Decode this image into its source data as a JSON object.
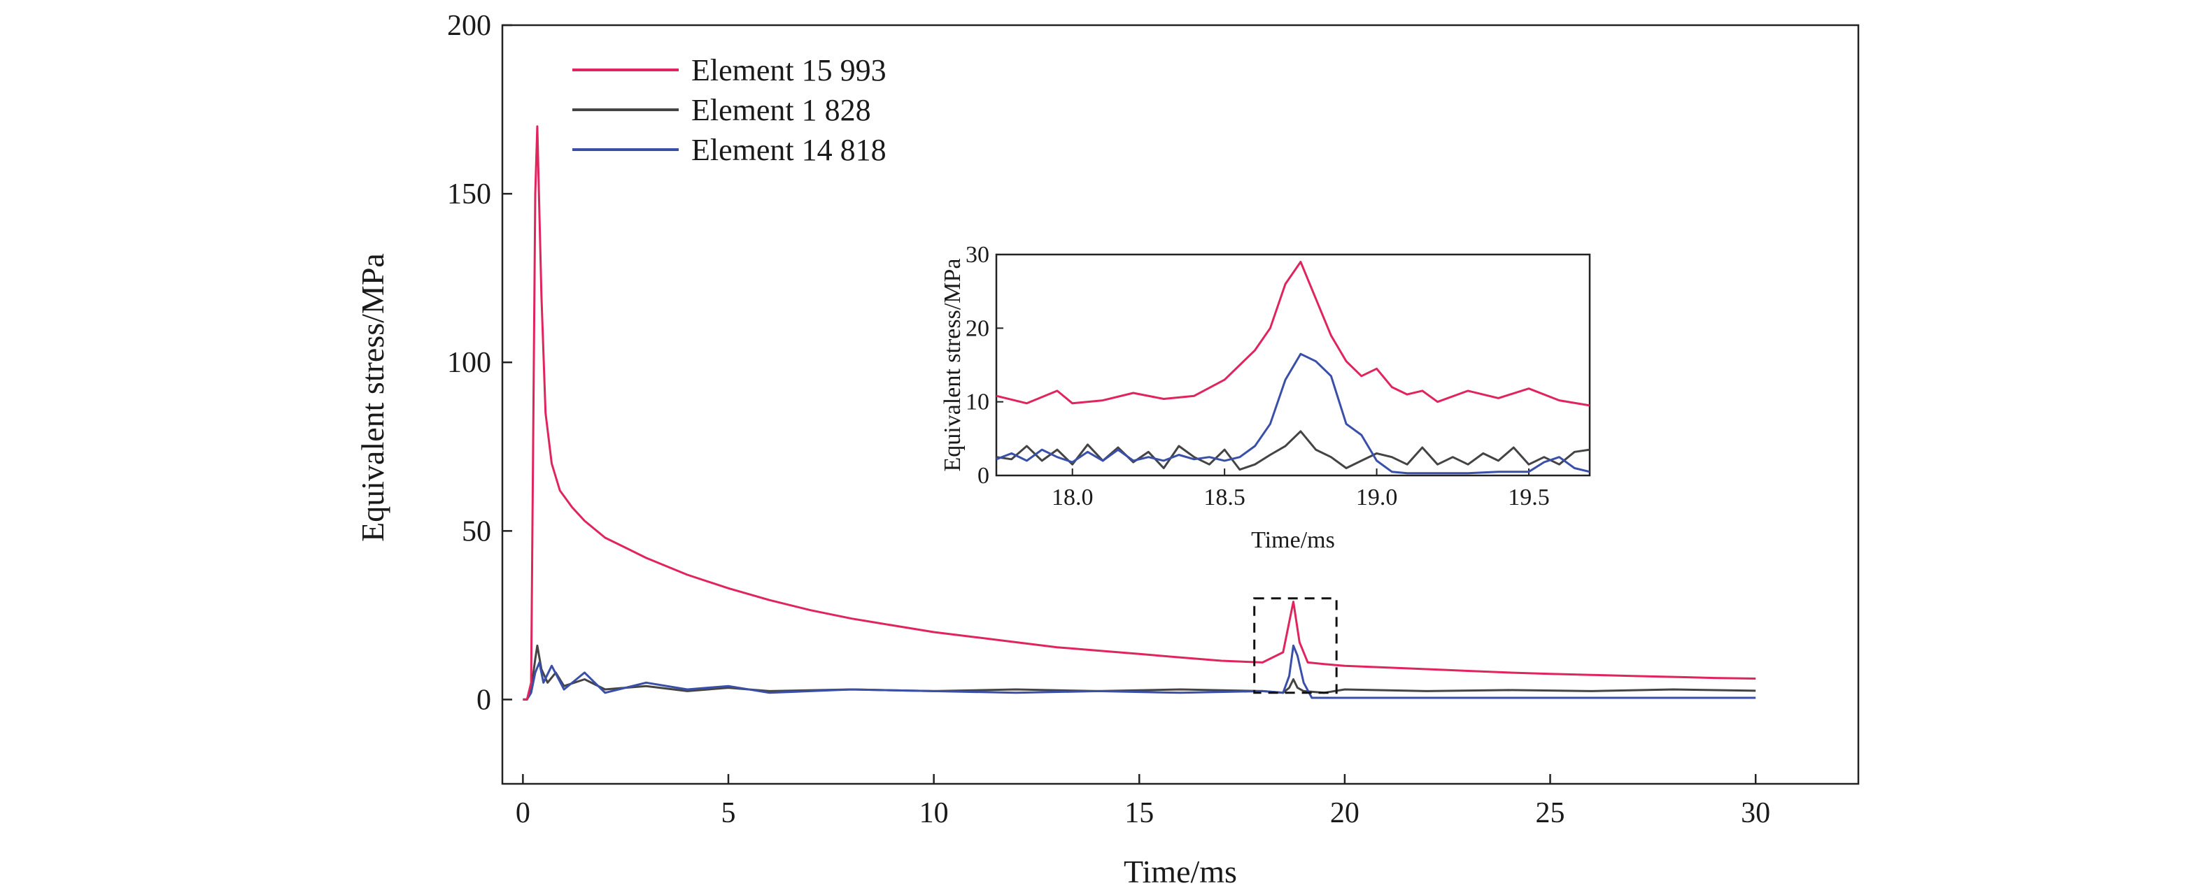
{
  "chart_data": [
    {
      "type": "line",
      "xlabel": "Time/ms",
      "ylabel": "Equivalent stress/MPa",
      "xlim": [
        -0.5,
        32.5
      ],
      "ylim": [
        -25,
        200
      ],
      "xticks": [
        "0",
        "5",
        "10",
        "15",
        "20",
        "25",
        "30"
      ],
      "yticks": [
        "0",
        "50",
        "100",
        "150",
        "200"
      ],
      "legend_position": "top-left",
      "grid": false,
      "annotation": "dashed box marking 17.8–19.8 ms, magnified in inset",
      "series": [
        {
          "name": "Element 15 993",
          "color": "#e0245e",
          "x": [
            0,
            0.1,
            0.2,
            0.3,
            0.35,
            0.45,
            0.55,
            0.7,
            0.9,
            1.2,
            1.5,
            2,
            2.5,
            3,
            4,
            5,
            6,
            7,
            8,
            9,
            10,
            11,
            12,
            13,
            14,
            15,
            16,
            17,
            18,
            18.5,
            18.65,
            18.75,
            18.9,
            19.1,
            19.5,
            20,
            21,
            22,
            23,
            24,
            25,
            26,
            27,
            28,
            29,
            30
          ],
          "y": [
            0,
            0,
            5,
            150,
            170,
            120,
            85,
            70,
            62,
            57,
            53,
            48,
            45,
            42,
            37,
            33,
            29.5,
            26.5,
            24,
            22,
            20,
            18.5,
            17,
            15.5,
            14.5,
            13.5,
            12.5,
            11.5,
            11,
            14,
            23,
            29,
            17,
            11,
            10.5,
            10,
            9.5,
            9,
            8.5,
            8,
            7.6,
            7.3,
            7,
            6.7,
            6.4,
            6.2
          ]
        },
        {
          "name": "Element 1 828",
          "color": "#444444",
          "x": [
            0,
            0.1,
            0.2,
            0.3,
            0.35,
            0.45,
            0.6,
            0.8,
            1,
            1.5,
            2,
            3,
            4,
            5,
            6,
            8,
            10,
            12,
            14,
            16,
            18,
            18.5,
            18.65,
            18.75,
            18.85,
            19,
            19.5,
            20,
            22,
            24,
            26,
            28,
            30
          ],
          "y": [
            0,
            0,
            3,
            12,
            16,
            9,
            5,
            8,
            4,
            6,
            3,
            4,
            2.5,
            3.5,
            2.5,
            3,
            2.5,
            3,
            2.5,
            3,
            2.5,
            2,
            3.5,
            6,
            3.5,
            2.5,
            2,
            3,
            2.5,
            2.8,
            2.5,
            3,
            2.6
          ]
        },
        {
          "name": "Element 14 818",
          "color": "#3a4fa8",
          "x": [
            0,
            0.1,
            0.2,
            0.3,
            0.4,
            0.5,
            0.7,
            1,
            1.5,
            2,
            3,
            4,
            5,
            6,
            8,
            10,
            12,
            14,
            16,
            18,
            18.5,
            18.65,
            18.75,
            18.85,
            19,
            19.2,
            20,
            22,
            24,
            26,
            28,
            30
          ],
          "y": [
            0,
            0,
            2,
            8,
            11,
            5,
            10,
            3,
            8,
            2,
            5,
            3,
            4,
            2,
            3,
            2.5,
            2,
            2.5,
            2,
            2.5,
            2,
            7,
            16,
            13,
            5,
            0.5,
            0.5,
            0.5,
            0.5,
            0.5,
            0.5,
            0.5
          ]
        }
      ]
    },
    {
      "type": "line",
      "xlabel": "Time/ms",
      "ylabel": "Equivalent stress/MPa",
      "xlim": [
        17.75,
        19.7
      ],
      "ylim": [
        0,
        30
      ],
      "xticks": [
        "18.0",
        "18.5",
        "19.0",
        "19.5"
      ],
      "yticks": [
        "0",
        "10",
        "20",
        "30"
      ],
      "grid": false,
      "series": [
        {
          "color": "#e0245e",
          "x": [
            17.75,
            17.85,
            17.95,
            18.0,
            18.1,
            18.2,
            18.3,
            18.4,
            18.5,
            18.6,
            18.65,
            18.7,
            18.75,
            18.8,
            18.85,
            18.9,
            18.95,
            19.0,
            19.05,
            19.1,
            19.15,
            19.2,
            19.3,
            19.4,
            19.5,
            19.6,
            19.7
          ],
          "y": [
            10.8,
            9.8,
            11.5,
            9.8,
            10.2,
            11.2,
            10.4,
            10.8,
            13,
            17,
            20,
            26,
            29,
            24,
            19,
            15.5,
            13.5,
            14.5,
            12,
            11,
            11.5,
            10,
            11.5,
            10.5,
            11.8,
            10.2,
            9.5
          ]
        },
        {
          "color": "#444444",
          "x": [
            17.75,
            17.8,
            17.85,
            17.9,
            17.95,
            18.0,
            18.05,
            18.1,
            18.15,
            18.2,
            18.25,
            18.3,
            18.35,
            18.4,
            18.45,
            18.5,
            18.55,
            18.6,
            18.65,
            18.7,
            18.75,
            18.8,
            18.85,
            18.9,
            18.95,
            19.0,
            19.05,
            19.1,
            19.15,
            19.2,
            19.25,
            19.3,
            19.35,
            19.4,
            19.45,
            19.5,
            19.55,
            19.6,
            19.65,
            19.7
          ],
          "y": [
            2.5,
            2.2,
            4,
            2,
            3.5,
            1.5,
            4.2,
            2,
            3.8,
            1.8,
            3.2,
            1,
            4,
            2.5,
            1.5,
            3.5,
            0.8,
            1.5,
            2.8,
            4,
            6,
            3.5,
            2.5,
            1,
            2,
            3,
            2.5,
            1.5,
            3.8,
            1.5,
            2.5,
            1.5,
            3,
            2,
            3.8,
            1.5,
            2.5,
            1.5,
            3.2,
            3.5
          ]
        },
        {
          "color": "#3a4fa8",
          "x": [
            17.75,
            17.8,
            17.85,
            17.9,
            17.95,
            18.0,
            18.05,
            18.1,
            18.15,
            18.2,
            18.25,
            18.3,
            18.35,
            18.4,
            18.45,
            18.5,
            18.55,
            18.6,
            18.65,
            18.7,
            18.75,
            18.8,
            18.85,
            18.9,
            18.95,
            19.0,
            19.05,
            19.1,
            19.2,
            19.3,
            19.4,
            19.5,
            19.55,
            19.6,
            19.65,
            19.7
          ],
          "y": [
            2.2,
            3,
            2,
            3.5,
            2.5,
            1.8,
            3.2,
            2,
            3.5,
            2,
            2.5,
            2,
            2.8,
            2.2,
            2.5,
            2,
            2.5,
            4,
            7,
            13,
            16.5,
            15.5,
            13.5,
            7,
            5.5,
            2,
            0.5,
            0.3,
            0.3,
            0.3,
            0.5,
            0.5,
            1.8,
            2.5,
            1,
            0.5
          ]
        }
      ]
    }
  ]
}
